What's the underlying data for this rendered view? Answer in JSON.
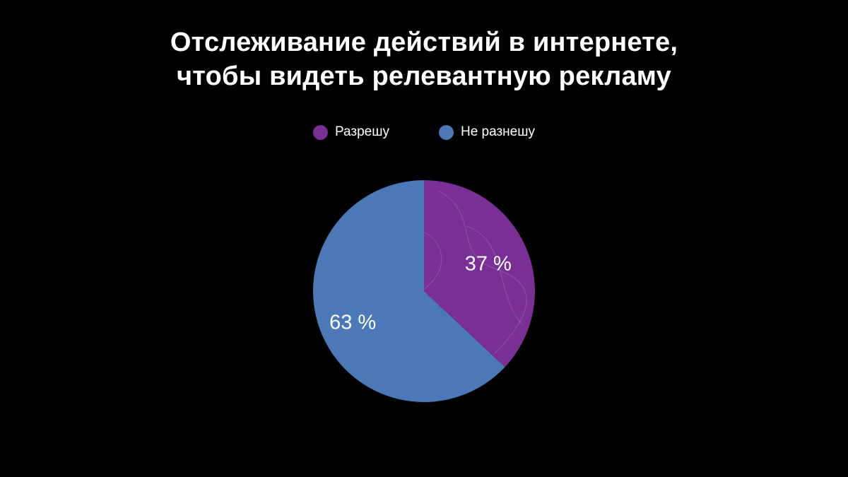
{
  "chart_data": {
    "type": "pie",
    "title_lines": [
      "Отслеживание действий в интернете,",
      "чтобы видеть релевантную рекламу"
    ],
    "legend_position": "top",
    "slices": [
      {
        "name": "Разрешу",
        "value": 37,
        "label": "37 %",
        "color": "#7a2f97"
      },
      {
        "name": "Не разнешу",
        "value": 63,
        "label": "63 %",
        "color": "#4b79b8"
      }
    ]
  },
  "colors": {
    "background": "#000000",
    "text": "#ffffff"
  }
}
